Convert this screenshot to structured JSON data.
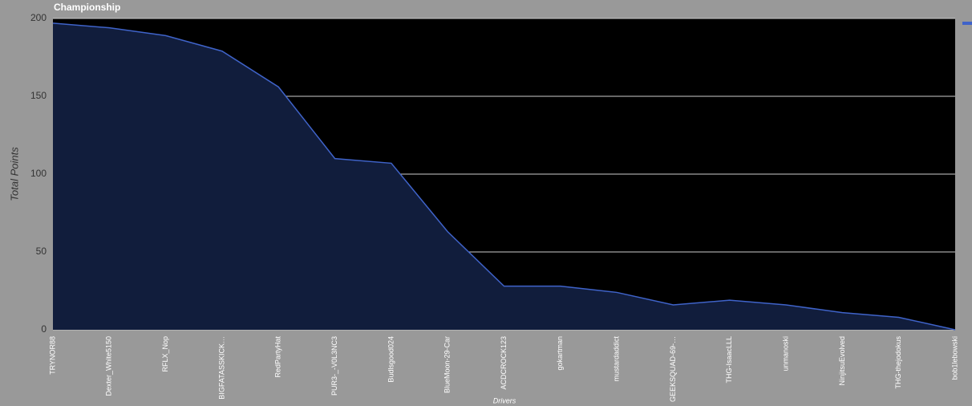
{
  "chart_data": {
    "type": "area",
    "title": "Championship",
    "x_label": "Drivers",
    "y_label": "Total Points",
    "categories": [
      "TRYNOR88",
      "Dexter_White5150",
      "RFLX_Nop",
      "BIGFATASSKICK…",
      "RedPartyHat",
      "PUR3-_-V0L3NC3",
      "Budlsgood024",
      "BlueMoon-29-Car",
      "ACDCROCK123",
      "gokartman",
      "mustardaddict",
      "GEEKSQUAD-69-…",
      "THG-IsaacLLL",
      "unmanoski",
      "NinjitsuEvolved",
      "THG-thejodokus",
      "bob1lebowski"
    ],
    "values": [
      197,
      194,
      189,
      179,
      156,
      110,
      107,
      63,
      28,
      28,
      24,
      16,
      19,
      16,
      11,
      8,
      0
    ],
    "color": "#3f63c9",
    "fill": "#111d3c",
    "ylim": [
      0,
      200
    ],
    "yticks": [
      0,
      50,
      100,
      150,
      200
    ],
    "grid": true
  }
}
